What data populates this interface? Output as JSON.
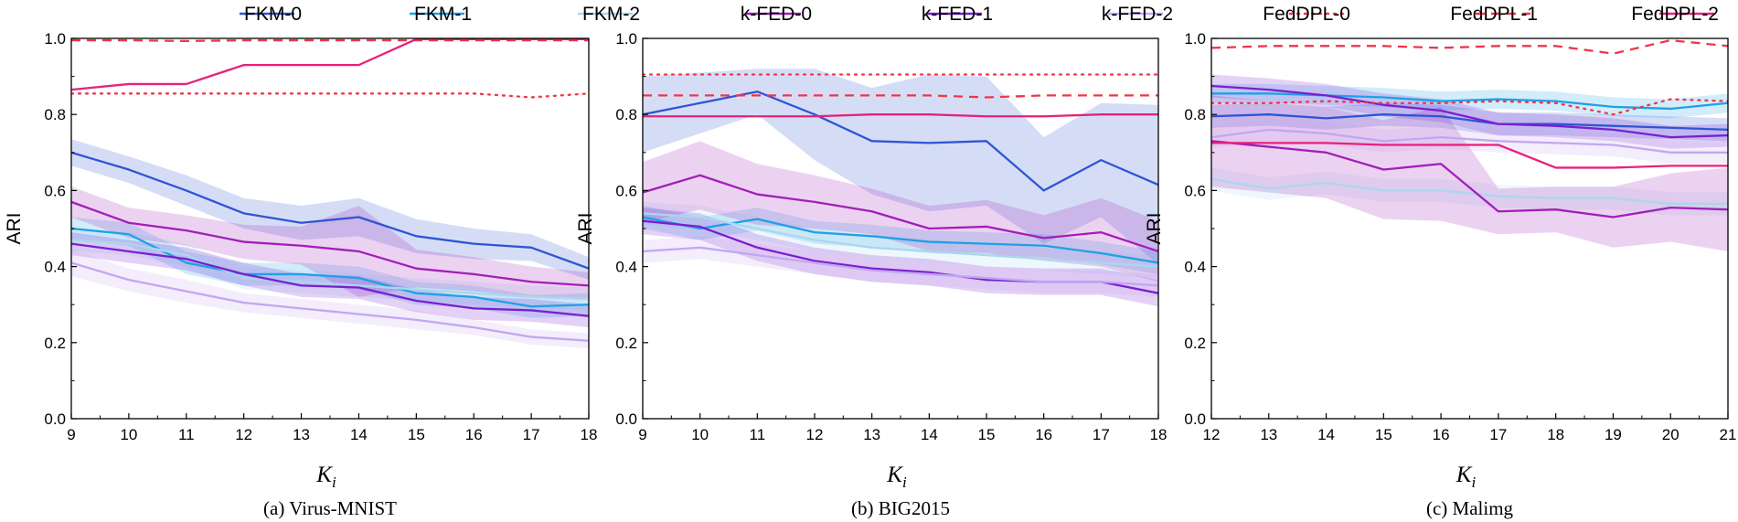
{
  "legend": [
    {
      "name": "FKM-0",
      "color": "#2f55d4",
      "dash": "solid"
    },
    {
      "name": "FKM-1",
      "color": "#1fa0e6",
      "dash": "solid"
    },
    {
      "name": "FKM-2",
      "color": "#a9d7ee",
      "dash": "solid"
    },
    {
      "name": "k-FED-0",
      "color": "#a11fb8",
      "dash": "solid"
    },
    {
      "name": "k-FED-1",
      "color": "#7a1fd1",
      "dash": "solid"
    },
    {
      "name": "k-FED-2",
      "color": "#c3a6f2",
      "dash": "solid"
    },
    {
      "name": "FedDPL-0",
      "color": "#f0364a",
      "dash": "dot"
    },
    {
      "name": "FedDPL-1",
      "color": "#f0364a",
      "dash": "dash"
    },
    {
      "name": "FedDPL-2",
      "color": "#e8207a",
      "dash": "solid"
    }
  ],
  "chart_data": [
    {
      "type": "line",
      "caption": "(a) Virus-MNIST",
      "xlabel": "K",
      "xlabel_sub": "i",
      "ylabel": "ARI",
      "xlim": [
        9,
        18
      ],
      "ylim": [
        0.0,
        1.0
      ],
      "x": [
        9,
        10,
        11,
        12,
        13,
        14,
        15,
        16,
        17,
        18
      ],
      "series": [
        {
          "name": "FKM-0",
          "values": [
            0.7,
            0.655,
            0.6,
            0.54,
            0.515,
            0.53,
            0.48,
            0.46,
            0.45,
            0.395
          ],
          "band": [
            0.035,
            0.035,
            0.04,
            0.04,
            0.045,
            0.05,
            0.045,
            0.04,
            0.035,
            0.03
          ]
        },
        {
          "name": "FKM-1",
          "values": [
            0.5,
            0.485,
            0.41,
            0.38,
            0.38,
            0.37,
            0.33,
            0.32,
            0.295,
            0.3
          ],
          "band": [
            0.03,
            0.03,
            0.03,
            0.03,
            0.03,
            0.03,
            0.03,
            0.03,
            0.03,
            0.03
          ]
        },
        {
          "name": "FKM-2",
          "values": [
            0.47,
            0.46,
            0.43,
            0.37,
            0.36,
            0.35,
            0.34,
            0.33,
            0.32,
            0.315
          ],
          "band": [
            0.03,
            0.03,
            0.03,
            0.03,
            0.03,
            0.03,
            0.03,
            0.03,
            0.03,
            0.03
          ]
        },
        {
          "name": "k-FED-0",
          "values": [
            0.57,
            0.515,
            0.495,
            0.465,
            0.455,
            0.44,
            0.395,
            0.38,
            0.36,
            0.35
          ],
          "band": [
            0.04,
            0.04,
            0.04,
            0.045,
            0.05,
            0.12,
            0.05,
            0.045,
            0.04,
            0.035
          ]
        },
        {
          "name": "k-FED-1",
          "values": [
            0.46,
            0.44,
            0.42,
            0.38,
            0.35,
            0.345,
            0.31,
            0.29,
            0.285,
            0.27
          ],
          "band": [
            0.03,
            0.03,
            0.03,
            0.03,
            0.03,
            0.03,
            0.03,
            0.03,
            0.03,
            0.03
          ]
        },
        {
          "name": "k-FED-2",
          "values": [
            0.41,
            0.365,
            0.335,
            0.305,
            0.29,
            0.275,
            0.26,
            0.24,
            0.215,
            0.205
          ],
          "band": [
            0.035,
            0.03,
            0.03,
            0.025,
            0.025,
            0.025,
            0.025,
            0.02,
            0.02,
            0.02
          ]
        },
        {
          "name": "FedDPL-0",
          "values": [
            0.855,
            0.855,
            0.855,
            0.855,
            0.855,
            0.855,
            0.855,
            0.855,
            0.845,
            0.855
          ]
        },
        {
          "name": "FedDPL-1",
          "values": [
            0.995,
            0.995,
            0.993,
            0.995,
            0.995,
            0.995,
            0.995,
            0.995,
            0.995,
            0.995
          ]
        },
        {
          "name": "FedDPL-2",
          "values": [
            0.865,
            0.88,
            0.88,
            0.93,
            0.93,
            0.93,
            0.998,
            0.998,
            0.998,
            0.998
          ]
        }
      ]
    },
    {
      "type": "line",
      "caption": "(b) BIG2015",
      "xlabel": "K",
      "xlabel_sub": "i",
      "ylabel": "ARI",
      "xlim": [
        9,
        18
      ],
      "ylim": [
        0.0,
        1.0
      ],
      "x": [
        9,
        10,
        11,
        12,
        13,
        14,
        15,
        16,
        17,
        18
      ],
      "series": [
        {
          "name": "FKM-0",
          "values": [
            0.8,
            0.83,
            0.86,
            0.8,
            0.73,
            0.725,
            0.73,
            0.6,
            0.68,
            0.615
          ],
          "band": [
            0.1,
            0.08,
            0.06,
            0.12,
            0.14,
            0.18,
            0.17,
            0.14,
            0.15,
            0.21
          ]
        },
        {
          "name": "FKM-1",
          "values": [
            0.53,
            0.5,
            0.525,
            0.49,
            0.48,
            0.465,
            0.46,
            0.455,
            0.435,
            0.41
          ],
          "band": [
            0.03,
            0.03,
            0.03,
            0.03,
            0.03,
            0.03,
            0.03,
            0.03,
            0.03,
            0.03
          ]
        },
        {
          "name": "FKM-2",
          "values": [
            0.54,
            0.53,
            0.5,
            0.47,
            0.45,
            0.44,
            0.43,
            0.42,
            0.41,
            0.4
          ],
          "band": [
            0.03,
            0.03,
            0.03,
            0.03,
            0.03,
            0.03,
            0.03,
            0.03,
            0.03,
            0.03
          ]
        },
        {
          "name": "k-FED-0",
          "values": [
            0.595,
            0.64,
            0.59,
            0.57,
            0.545,
            0.5,
            0.505,
            0.475,
            0.49,
            0.44
          ],
          "band": [
            0.08,
            0.09,
            0.08,
            0.07,
            0.06,
            0.06,
            0.07,
            0.06,
            0.09,
            0.08
          ]
        },
        {
          "name": "k-FED-1",
          "values": [
            0.52,
            0.505,
            0.45,
            0.415,
            0.395,
            0.385,
            0.365,
            0.36,
            0.36,
            0.33
          ],
          "band": [
            0.035,
            0.035,
            0.035,
            0.035,
            0.035,
            0.035,
            0.035,
            0.035,
            0.035,
            0.035
          ]
        },
        {
          "name": "k-FED-2",
          "values": [
            0.44,
            0.45,
            0.43,
            0.41,
            0.39,
            0.38,
            0.37,
            0.36,
            0.36,
            0.35
          ],
          "band": [
            0.03,
            0.03,
            0.03,
            0.03,
            0.03,
            0.03,
            0.03,
            0.03,
            0.03,
            0.03
          ]
        },
        {
          "name": "FedDPL-0",
          "values": [
            0.905,
            0.905,
            0.905,
            0.905,
            0.905,
            0.905,
            0.905,
            0.905,
            0.905,
            0.905
          ]
        },
        {
          "name": "FedDPL-1",
          "values": [
            0.85,
            0.85,
            0.85,
            0.85,
            0.85,
            0.85,
            0.845,
            0.85,
            0.85,
            0.85
          ]
        },
        {
          "name": "FedDPL-2",
          "values": [
            0.795,
            0.795,
            0.795,
            0.795,
            0.8,
            0.8,
            0.795,
            0.795,
            0.8,
            0.8
          ]
        }
      ]
    },
    {
      "type": "line",
      "caption": "(c) Malimg",
      "xlabel": "K",
      "xlabel_sub": "i",
      "ylabel": "ARI",
      "xlim": [
        12,
        21
      ],
      "ylim": [
        0.0,
        1.0
      ],
      "x": [
        12,
        13,
        14,
        15,
        16,
        17,
        18,
        19,
        20,
        21
      ],
      "series": [
        {
          "name": "FKM-0",
          "values": [
            0.795,
            0.8,
            0.79,
            0.8,
            0.795,
            0.775,
            0.775,
            0.77,
            0.765,
            0.76
          ],
          "band": [
            0.03,
            0.03,
            0.03,
            0.03,
            0.03,
            0.03,
            0.03,
            0.03,
            0.03,
            0.03
          ]
        },
        {
          "name": "FKM-1",
          "values": [
            0.855,
            0.855,
            0.85,
            0.845,
            0.835,
            0.84,
            0.835,
            0.82,
            0.815,
            0.83
          ],
          "band": [
            0.025,
            0.025,
            0.025,
            0.025,
            0.025,
            0.025,
            0.025,
            0.025,
            0.025,
            0.025
          ]
        },
        {
          "name": "FKM-2",
          "values": [
            0.63,
            0.605,
            0.62,
            0.6,
            0.6,
            0.585,
            0.58,
            0.58,
            0.565,
            0.565
          ],
          "band": [
            0.03,
            0.03,
            0.03,
            0.03,
            0.03,
            0.03,
            0.03,
            0.03,
            0.03,
            0.03
          ]
        },
        {
          "name": "k-FED-0",
          "values": [
            0.73,
            0.715,
            0.7,
            0.655,
            0.67,
            0.545,
            0.55,
            0.53,
            0.555,
            0.55
          ],
          "band": [
            0.12,
            0.12,
            0.12,
            0.13,
            0.15,
            0.06,
            0.06,
            0.08,
            0.09,
            0.11
          ]
        },
        {
          "name": "k-FED-1",
          "values": [
            0.875,
            0.865,
            0.85,
            0.825,
            0.81,
            0.775,
            0.77,
            0.76,
            0.74,
            0.745
          ],
          "band": [
            0.03,
            0.03,
            0.03,
            0.03,
            0.03,
            0.03,
            0.03,
            0.03,
            0.03,
            0.03
          ]
        },
        {
          "name": "k-FED-2",
          "values": [
            0.74,
            0.76,
            0.75,
            0.73,
            0.74,
            0.73,
            0.725,
            0.72,
            0.7,
            0.7
          ],
          "band": [
            0.03,
            0.03,
            0.03,
            0.03,
            0.03,
            0.03,
            0.03,
            0.03,
            0.03,
            0.03
          ]
        },
        {
          "name": "FedDPL-0",
          "values": [
            0.83,
            0.83,
            0.835,
            0.83,
            0.83,
            0.835,
            0.83,
            0.8,
            0.84,
            0.835
          ]
        },
        {
          "name": "FedDPL-1",
          "values": [
            0.975,
            0.98,
            0.98,
            0.98,
            0.975,
            0.98,
            0.98,
            0.96,
            0.995,
            0.98
          ]
        },
        {
          "name": "FedDPL-2",
          "values": [
            0.725,
            0.725,
            0.725,
            0.72,
            0.72,
            0.72,
            0.66,
            0.66,
            0.665,
            0.665
          ]
        }
      ]
    }
  ]
}
